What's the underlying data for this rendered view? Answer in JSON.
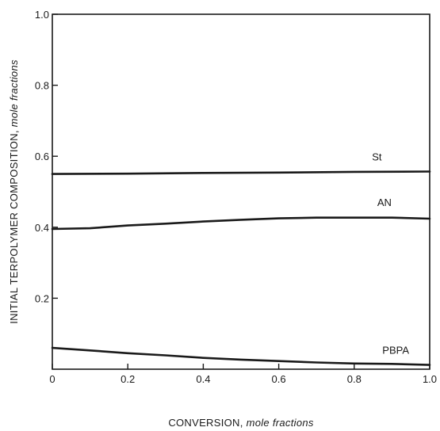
{
  "chart_data": {
    "type": "line",
    "xlabel": {
      "main": "CONVERSION,",
      "unit": "mole fractions"
    },
    "ylabel": {
      "main": "INITIAL TERPOLYMER COMPOSITION,",
      "unit": "mole fractions"
    },
    "xlim": [
      0,
      1.0
    ],
    "ylim": [
      0,
      1.0
    ],
    "x_ticks": [
      0,
      0.2,
      0.4,
      0.6,
      0.8,
      1.0
    ],
    "x_tick_labels": [
      "0",
      "0.2",
      "0.4",
      "0.6",
      "0.8",
      "1.0"
    ],
    "y_ticks": [
      0.2,
      0.4,
      0.6,
      0.8,
      1.0
    ],
    "y_tick_labels": [
      "0.2",
      "0.4",
      "0.6",
      "0.8",
      "1.0"
    ],
    "grid": false,
    "series": [
      {
        "name": "St",
        "x": [
          0,
          0.2,
          0.4,
          0.6,
          0.8,
          1.0
        ],
        "y": [
          0.55,
          0.551,
          0.553,
          0.554,
          0.556,
          0.557
        ]
      },
      {
        "name": "AN",
        "x": [
          0,
          0.1,
          0.2,
          0.3,
          0.4,
          0.5,
          0.6,
          0.7,
          0.8,
          0.9,
          1.0
        ],
        "y": [
          0.395,
          0.397,
          0.405,
          0.41,
          0.416,
          0.421,
          0.425,
          0.427,
          0.427,
          0.427,
          0.424
        ]
      },
      {
        "name": "PBPA",
        "x": [
          0,
          0.1,
          0.2,
          0.3,
          0.4,
          0.5,
          0.6,
          0.7,
          0.8,
          0.9,
          1.0
        ],
        "y": [
          0.06,
          0.053,
          0.045,
          0.039,
          0.032,
          0.027,
          0.023,
          0.019,
          0.016,
          0.015,
          0.012
        ]
      }
    ]
  }
}
